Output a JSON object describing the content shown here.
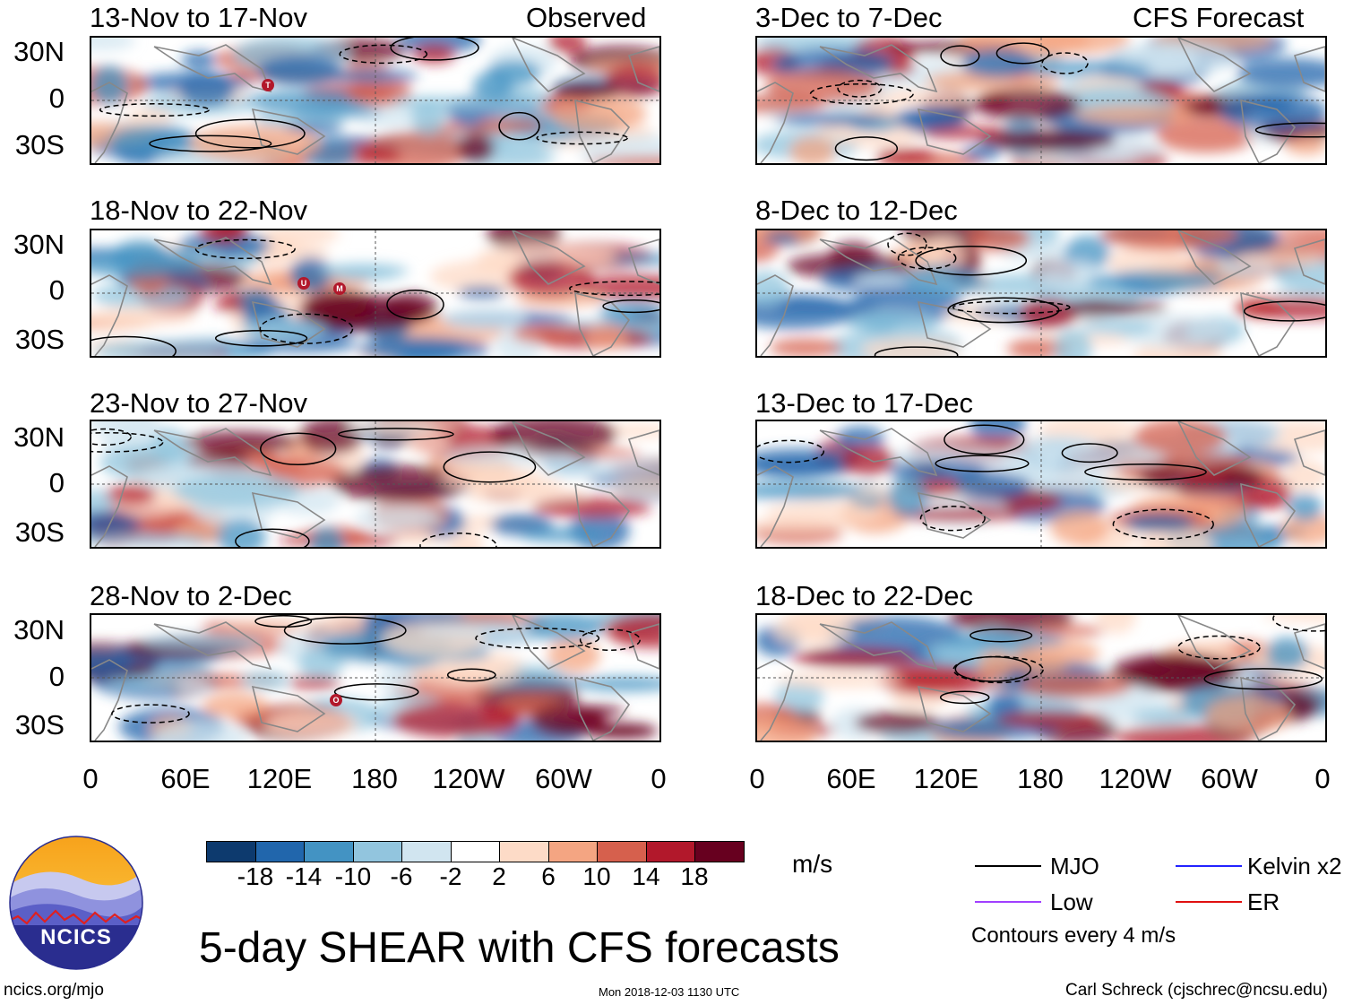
{
  "header": {
    "left_label": "Observed",
    "right_label": "CFS Forecast"
  },
  "panels_left": [
    {
      "title": "13-Nov to 17-Nov"
    },
    {
      "title": "18-Nov to 22-Nov"
    },
    {
      "title": "23-Nov to 27-Nov"
    },
    {
      "title": "28-Nov to 2-Dec"
    }
  ],
  "panels_right": [
    {
      "title": "3-Dec to 7-Dec"
    },
    {
      "title": "8-Dec to 12-Dec"
    },
    {
      "title": "13-Dec to 17-Dec"
    },
    {
      "title": "18-Dec to 22-Dec"
    }
  ],
  "axes": {
    "lat_labels": [
      "30N",
      "0",
      "30S"
    ],
    "lon_labels": [
      "0",
      "60E",
      "120E",
      "180",
      "120W",
      "60W",
      "0"
    ]
  },
  "colorbar": {
    "ticks": [
      "-18",
      "-14",
      "-10",
      "-6",
      "-2",
      "2",
      "6",
      "10",
      "14",
      "18"
    ],
    "units": "m/s",
    "colors": [
      "#0d3a6e",
      "#2166ac",
      "#4393c3",
      "#92c5de",
      "#d1e5f0",
      "#ffffff",
      "#fddbc7",
      "#f4a582",
      "#d6604d",
      "#b2182b",
      "#67001f"
    ]
  },
  "legend": {
    "mjo": {
      "label": "MJO",
      "color": "#000000"
    },
    "kelvin": {
      "label": "Kelvin x2",
      "color": "#2323ff"
    },
    "low": {
      "label": "Low",
      "color": "#a040ff"
    },
    "er": {
      "label": "ER",
      "color": "#e01010"
    },
    "contours_note": "Contours every 4 m/s"
  },
  "logo": {
    "text": "NCICS"
  },
  "title": "5-day SHEAR with CFS forecasts",
  "footer": {
    "url": "ncics.org/mjo",
    "timestamp": "Mon 2018-12-03 1130 UTC",
    "credit": "Carl Schreck (cjschrec@ncsu.edu)"
  },
  "storm_markers": [
    {
      "panel": 0,
      "letter": "T"
    },
    {
      "panel": 1,
      "letter": "U"
    },
    {
      "panel": 1,
      "letter": "M"
    },
    {
      "panel": 3,
      "letter": "O"
    }
  ]
}
